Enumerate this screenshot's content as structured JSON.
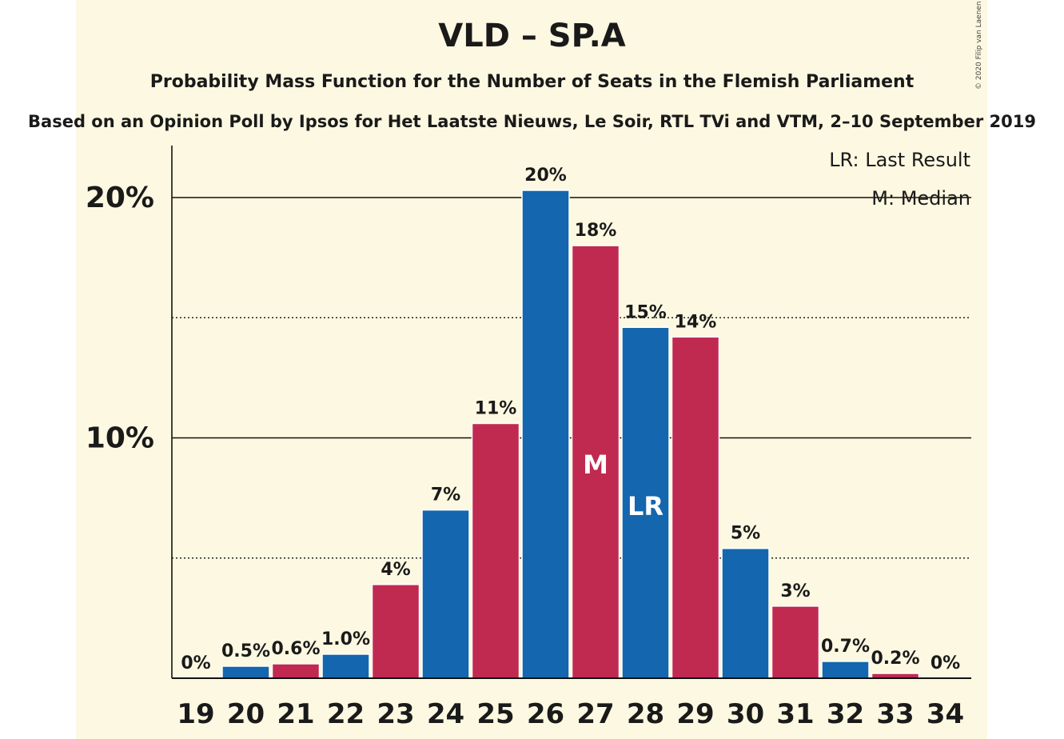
{
  "header": {
    "title": "VLD – SP.A",
    "subtitle": "Probability Mass Function for the Number of Seats in the Flemish Parliament",
    "source": "Based on an Opinion Poll by Ipsos for Het Laatste Nieuws, Le Soir, RTL TVi and VTM, 2–10 September 2019",
    "credit": "© 2020 Filip van Laenen"
  },
  "legend": {
    "last_result": "LR: Last Result",
    "median": "M: Median"
  },
  "colors": {
    "background": "#fdf8e1",
    "blue": "#1466ae",
    "red": "#c02a51"
  },
  "chart_data": {
    "type": "bar",
    "categories": [
      "19",
      "20",
      "21",
      "22",
      "23",
      "24",
      "25",
      "26",
      "27",
      "28",
      "29",
      "30",
      "31",
      "32",
      "33",
      "34"
    ],
    "values": [
      0,
      0.5,
      0.6,
      1.0,
      3.9,
      7.0,
      10.6,
      20.3,
      18.0,
      14.6,
      14.2,
      5.4,
      3.0,
      0.7,
      0.2,
      0
    ],
    "value_labels": [
      "0%",
      "0.5%",
      "0.6%",
      "1.0%",
      "4%",
      "7%",
      "11%",
      "20%",
      "18%",
      "15%",
      "14%",
      "5%",
      "3%",
      "0.7%",
      "0.2%",
      "0%"
    ],
    "bar_colors": [
      "blue",
      "blue",
      "red",
      "blue",
      "red",
      "blue",
      "red",
      "blue",
      "red",
      "blue",
      "red",
      "blue",
      "red",
      "blue",
      "red",
      "blue"
    ],
    "markers": {
      "27": "M",
      "28": "LR"
    },
    "ylim": [
      0,
      22
    ],
    "yticks": [
      {
        "value": 10,
        "label": "10%"
      },
      {
        "value": 20,
        "label": "20%"
      }
    ],
    "dotted_gridlines": [
      5,
      15
    ],
    "xlabel": "",
    "ylabel": ""
  }
}
